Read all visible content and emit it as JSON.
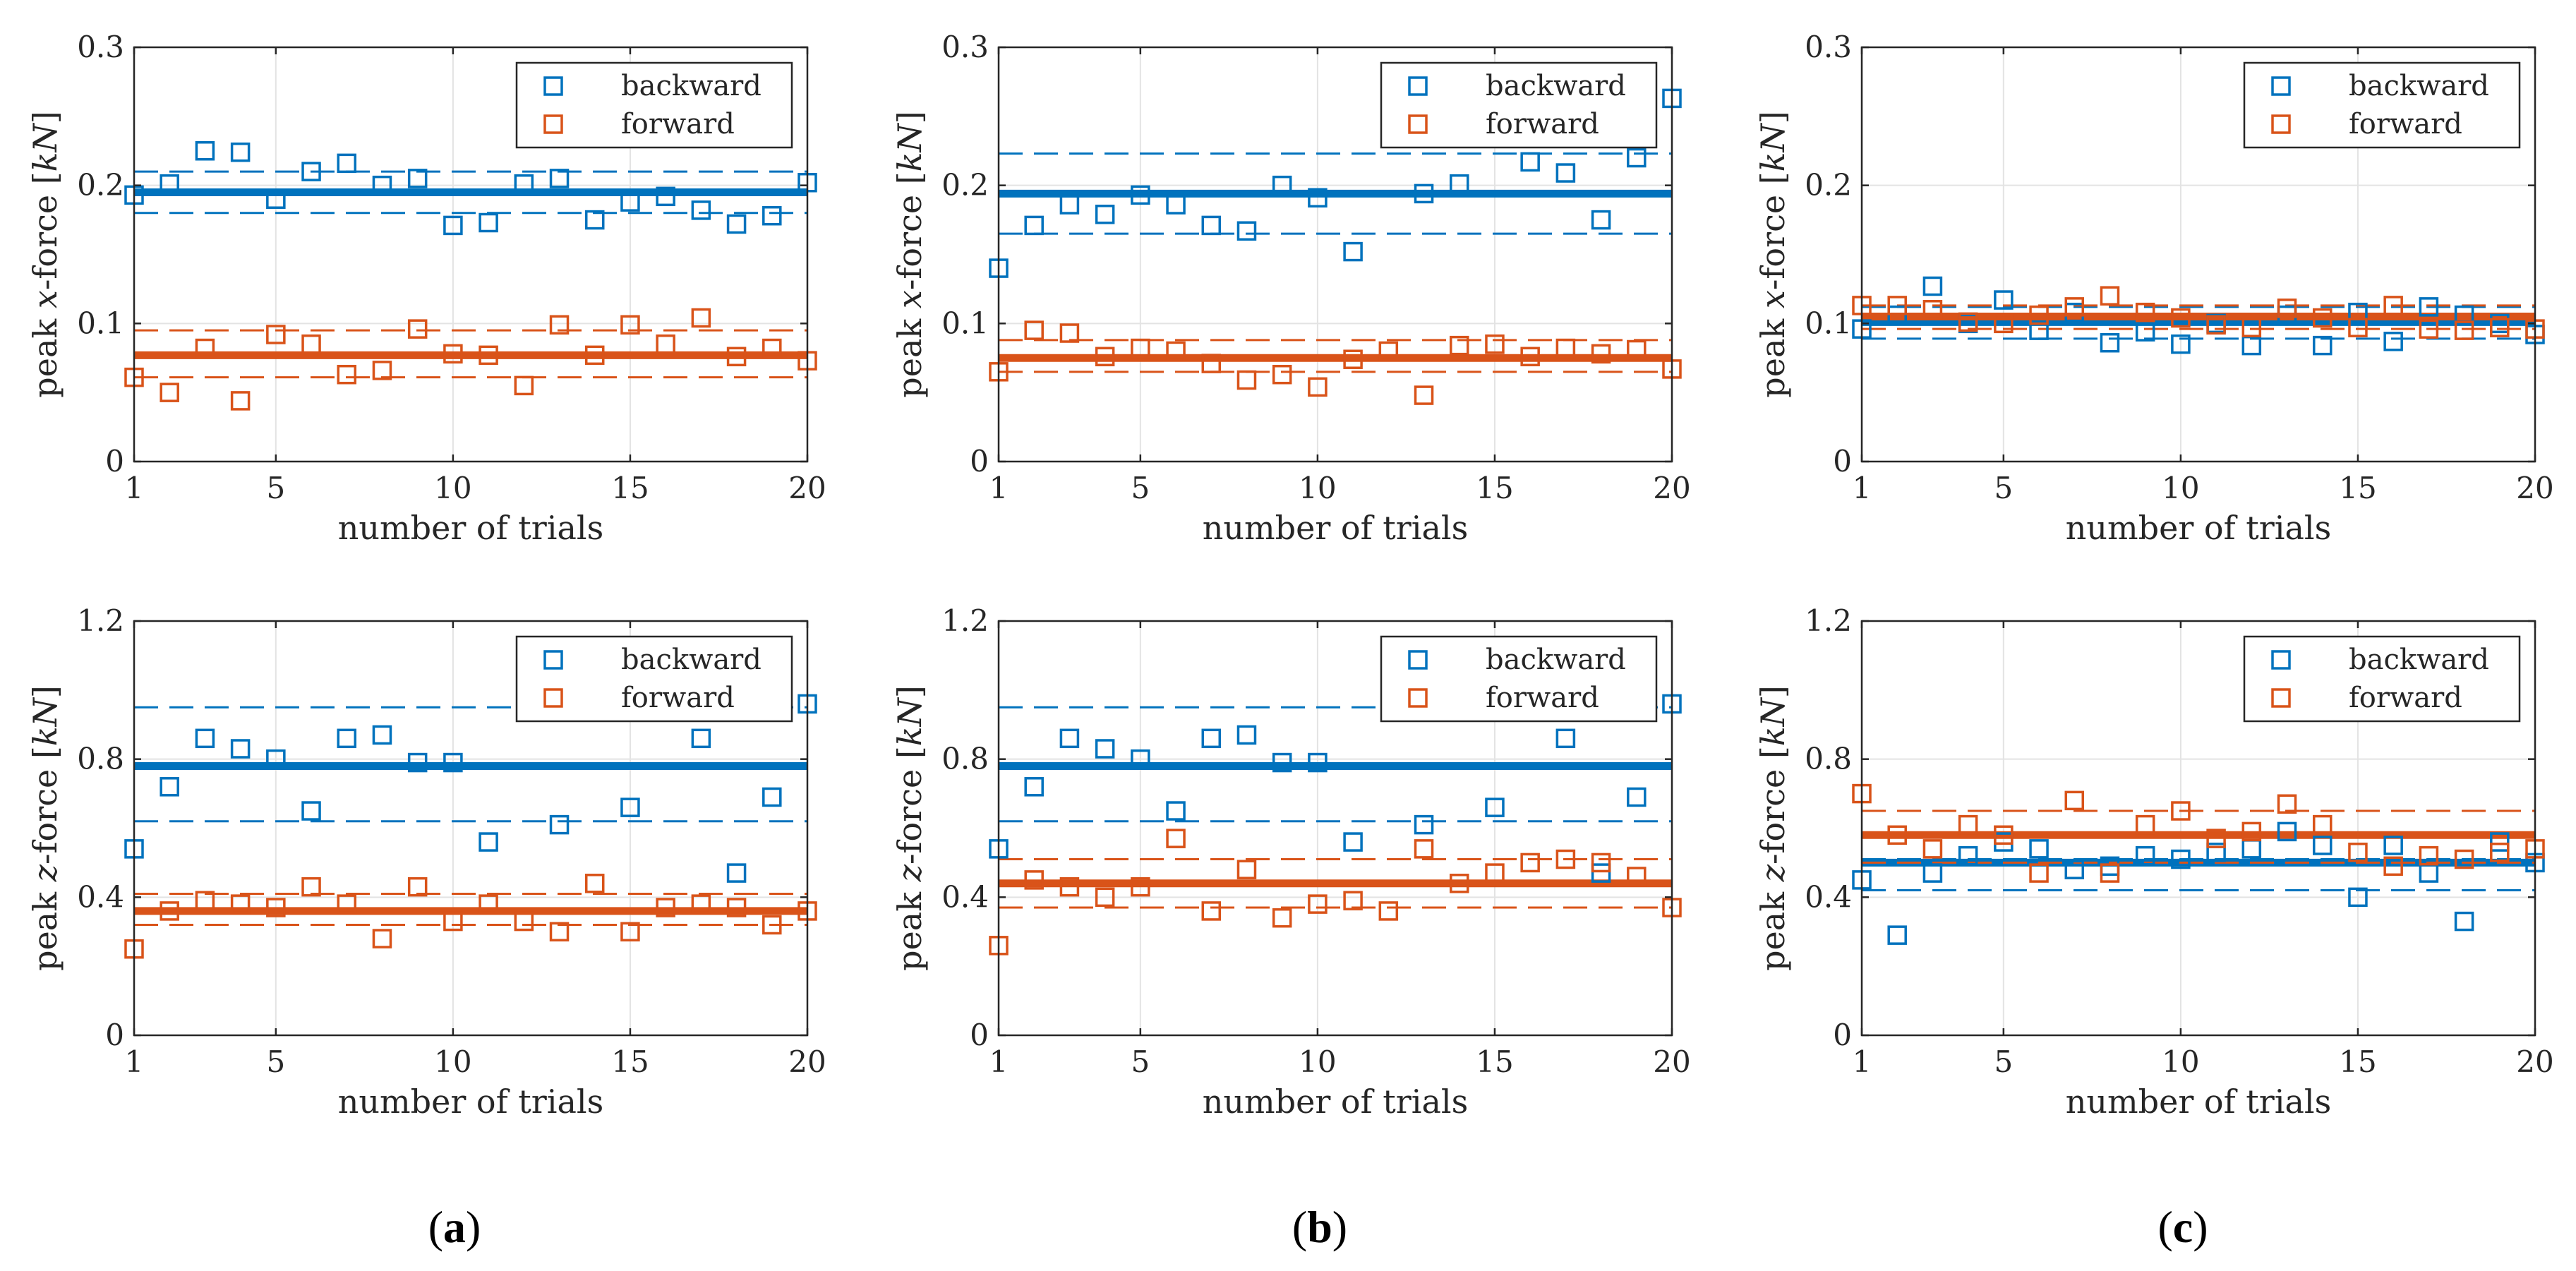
{
  "colors": {
    "backward": "#0072BD",
    "forward": "#D95319",
    "grid": "#e3e3e3",
    "axis": "#262626"
  },
  "chart_data": [
    {
      "type": "scatter",
      "panel": "(a)",
      "xlabel": "number of trials",
      "ylabel": "peak x-force [kN]",
      "ylabel_var": "x",
      "xlim": [
        1,
        20
      ],
      "ylim": [
        0,
        0.3
      ],
      "xticks": [
        1,
        5,
        10,
        15,
        20
      ],
      "yticks": [
        0,
        0.1,
        0.2,
        0.3
      ],
      "ytick_labels": [
        "0",
        "0.1",
        "0.2",
        "0.3"
      ],
      "grid": true,
      "legend": "top-right",
      "series": [
        {
          "name": "backward",
          "x": [
            1,
            2,
            3,
            4,
            5,
            6,
            7,
            8,
            9,
            10,
            11,
            12,
            13,
            14,
            15,
            16,
            17,
            18,
            19,
            20
          ],
          "y": [
            0.193,
            0.201,
            0.225,
            0.224,
            0.19,
            0.21,
            0.216,
            0.2,
            0.205,
            0.171,
            0.173,
            0.201,
            0.205,
            0.175,
            0.188,
            0.192,
            0.182,
            0.172,
            0.178,
            0.202
          ],
          "mean": 0.195,
          "band": [
            0.18,
            0.21
          ]
        },
        {
          "name": "forward",
          "x": [
            1,
            2,
            3,
            4,
            5,
            6,
            7,
            8,
            9,
            10,
            11,
            12,
            13,
            14,
            15,
            16,
            17,
            18,
            19,
            20
          ],
          "y": [
            0.061,
            0.05,
            0.082,
            0.044,
            0.092,
            0.085,
            0.063,
            0.066,
            0.096,
            0.078,
            0.077,
            0.055,
            0.099,
            0.077,
            0.099,
            0.085,
            0.104,
            0.076,
            0.082,
            0.073
          ],
          "mean": 0.077,
          "band": [
            0.061,
            0.095
          ]
        }
      ]
    },
    {
      "type": "scatter",
      "panel": "(b)",
      "xlabel": "number of trials",
      "ylabel": "peak x-force [kN]",
      "ylabel_var": "x",
      "xlim": [
        1,
        20
      ],
      "ylim": [
        0,
        0.3
      ],
      "xticks": [
        1,
        5,
        10,
        15,
        20
      ],
      "yticks": [
        0,
        0.1,
        0.2,
        0.3
      ],
      "ytick_labels": [
        "0",
        "0.1",
        "0.2",
        "0.3"
      ],
      "grid": true,
      "legend": "top-right",
      "series": [
        {
          "name": "backward",
          "x": [
            1,
            2,
            3,
            4,
            5,
            6,
            7,
            8,
            9,
            10,
            11,
            12,
            13,
            14,
            15,
            16,
            17,
            18,
            19,
            20
          ],
          "y": [
            0.14,
            0.171,
            0.186,
            0.179,
            0.193,
            0.186,
            0.171,
            0.167,
            0.2,
            0.191,
            0.152,
            null,
            0.194,
            0.201,
            null,
            0.217,
            0.209,
            0.175,
            0.22,
            0.263
          ],
          "mean": 0.194,
          "band": [
            0.165,
            0.223
          ]
        },
        {
          "name": "forward",
          "x": [
            1,
            2,
            3,
            4,
            5,
            6,
            7,
            8,
            9,
            10,
            11,
            12,
            13,
            14,
            15,
            16,
            17,
            18,
            19,
            20
          ],
          "y": [
            0.065,
            0.095,
            0.093,
            0.076,
            0.082,
            0.08,
            0.071,
            0.059,
            0.063,
            0.054,
            0.074,
            0.08,
            0.048,
            0.084,
            0.085,
            0.076,
            0.082,
            0.078,
            0.081,
            0.067
          ],
          "mean": 0.075,
          "band": [
            0.065,
            0.088
          ]
        }
      ]
    },
    {
      "type": "scatter",
      "panel": "(c)",
      "xlabel": "number of trials",
      "ylabel": "peak x-force [kN]",
      "ylabel_var": "x",
      "xlim": [
        1,
        20
      ],
      "ylim": [
        0,
        0.3
      ],
      "xticks": [
        1,
        5,
        10,
        15,
        20
      ],
      "yticks": [
        0,
        0.1,
        0.2,
        0.3
      ],
      "ytick_labels": [
        "0",
        "0.1",
        "0.2",
        "0.3"
      ],
      "grid": true,
      "legend": "top-right",
      "series": [
        {
          "name": "backward",
          "x": [
            1,
            2,
            3,
            4,
            5,
            6,
            7,
            8,
            9,
            10,
            11,
            12,
            13,
            14,
            15,
            16,
            17,
            18,
            19,
            20
          ],
          "y": [
            0.096,
            0.106,
            0.127,
            0.1,
            0.117,
            0.095,
            0.108,
            0.086,
            0.094,
            0.085,
            0.1,
            0.084,
            0.106,
            0.084,
            0.108,
            0.087,
            0.112,
            0.106,
            0.1,
            0.092
          ],
          "mean": 0.101,
          "band": [
            0.089,
            0.112
          ]
        },
        {
          "name": "forward",
          "x": [
            1,
            2,
            3,
            4,
            5,
            6,
            7,
            8,
            9,
            10,
            11,
            12,
            13,
            14,
            15,
            16,
            17,
            18,
            19,
            20
          ],
          "y": [
            0.113,
            0.113,
            0.11,
            0.101,
            0.1,
            0.106,
            0.112,
            0.12,
            0.108,
            0.104,
            0.099,
            0.097,
            0.111,
            0.104,
            0.097,
            0.113,
            0.096,
            0.095,
            0.097,
            0.096
          ],
          "mean": 0.105,
          "band": [
            0.096,
            0.113
          ]
        }
      ]
    },
    {
      "type": "scatter",
      "panel": "(a)",
      "xlabel": "number of trials",
      "ylabel": "peak z-force [kN]",
      "ylabel_var": "z",
      "xlim": [
        1,
        20
      ],
      "ylim": [
        0,
        1.2
      ],
      "xticks": [
        1,
        5,
        10,
        15,
        20
      ],
      "yticks": [
        0,
        0.4,
        0.8,
        1.2
      ],
      "ytick_labels": [
        "0",
        "0.4",
        "0.8",
        "1.2"
      ],
      "grid": true,
      "legend": "top-right",
      "series": [
        {
          "name": "backward",
          "x": [
            1,
            2,
            3,
            4,
            5,
            6,
            7,
            8,
            9,
            10,
            11,
            12,
            13,
            14,
            15,
            16,
            17,
            18,
            19,
            20
          ],
          "y": [
            0.54,
            0.72,
            0.86,
            0.83,
            0.8,
            0.65,
            0.86,
            0.87,
            0.79,
            0.79,
            0.56,
            null,
            0.61,
            null,
            0.66,
            null,
            0.86,
            0.47,
            0.69,
            0.96
          ],
          "mean": 0.78,
          "band": [
            0.62,
            0.95
          ]
        },
        {
          "name": "forward",
          "x": [
            1,
            2,
            3,
            4,
            5,
            6,
            7,
            8,
            9,
            10,
            11,
            12,
            13,
            14,
            15,
            16,
            17,
            18,
            19,
            20
          ],
          "y": [
            0.25,
            0.36,
            0.39,
            0.38,
            0.37,
            0.43,
            0.38,
            0.28,
            0.43,
            0.33,
            0.38,
            0.33,
            0.3,
            0.44,
            0.3,
            0.37,
            0.38,
            0.37,
            0.32,
            0.36
          ],
          "mean": 0.36,
          "band": [
            0.32,
            0.41
          ]
        }
      ]
    },
    {
      "type": "scatter",
      "panel": "(b)",
      "xlabel": "number of trials",
      "ylabel": "peak z-force [kN]",
      "ylabel_var": "z",
      "xlim": [
        1,
        20
      ],
      "ylim": [
        0,
        1.2
      ],
      "xticks": [
        1,
        5,
        10,
        15,
        20
      ],
      "yticks": [
        0,
        0.4,
        0.8,
        1.2
      ],
      "ytick_labels": [
        "0",
        "0.4",
        "0.8",
        "1.2"
      ],
      "grid": true,
      "legend": "top-right",
      "series": [
        {
          "name": "backward",
          "x": [
            1,
            2,
            3,
            4,
            5,
            6,
            7,
            8,
            9,
            10,
            11,
            12,
            13,
            14,
            15,
            16,
            17,
            18,
            19,
            20
          ],
          "y": [
            0.54,
            0.72,
            0.86,
            0.83,
            0.8,
            0.65,
            0.86,
            0.87,
            0.79,
            0.79,
            0.56,
            null,
            0.61,
            null,
            0.66,
            null,
            0.86,
            0.47,
            0.69,
            0.96
          ],
          "mean": 0.78,
          "band": [
            0.62,
            0.95
          ]
        },
        {
          "name": "forward",
          "x": [
            1,
            2,
            3,
            4,
            5,
            6,
            7,
            8,
            9,
            10,
            11,
            12,
            13,
            14,
            15,
            16,
            17,
            18,
            19,
            20
          ],
          "y": [
            0.26,
            0.45,
            0.43,
            0.4,
            0.43,
            0.57,
            0.36,
            0.48,
            0.34,
            0.38,
            0.39,
            0.36,
            0.54,
            0.44,
            0.47,
            0.5,
            0.51,
            0.5,
            0.46,
            0.37
          ],
          "mean": 0.44,
          "band": [
            0.37,
            0.51
          ]
        }
      ]
    },
    {
      "type": "scatter",
      "panel": "(c)",
      "xlabel": "number of trials",
      "ylabel": "peak z-force [kN]",
      "ylabel_var": "z",
      "xlim": [
        1,
        20
      ],
      "ylim": [
        0,
        1.2
      ],
      "xticks": [
        1,
        5,
        10,
        15,
        20
      ],
      "yticks": [
        0,
        0.4,
        0.8,
        1.2
      ],
      "ytick_labels": [
        "0",
        "0.4",
        "0.8",
        "1.2"
      ],
      "grid": true,
      "legend": "top-right",
      "series": [
        {
          "name": "backward",
          "x": [
            1,
            2,
            3,
            4,
            5,
            6,
            7,
            8,
            9,
            10,
            11,
            12,
            13,
            14,
            15,
            16,
            17,
            18,
            19,
            20
          ],
          "y": [
            0.45,
            0.29,
            0.47,
            0.52,
            0.56,
            0.54,
            0.48,
            0.49,
            0.52,
            0.51,
            0.53,
            0.54,
            0.59,
            0.55,
            0.4,
            0.55,
            0.47,
            0.33,
            0.56,
            0.5
          ],
          "mean": 0.5,
          "band": [
            0.42,
            0.51
          ]
        },
        {
          "name": "forward",
          "x": [
            1,
            2,
            3,
            4,
            5,
            6,
            7,
            8,
            9,
            10,
            11,
            12,
            13,
            14,
            15,
            16,
            17,
            18,
            19,
            20
          ],
          "y": [
            0.7,
            0.58,
            0.54,
            0.61,
            0.58,
            0.47,
            0.68,
            0.47,
            0.61,
            0.65,
            0.57,
            0.59,
            0.67,
            0.61,
            0.53,
            0.49,
            0.52,
            0.51,
            0.53,
            0.54
          ],
          "mean": 0.58,
          "band": [
            0.5,
            0.65
          ]
        }
      ]
    }
  ],
  "captions": [
    "(a)",
    "(b)",
    "(c)"
  ],
  "ylabel_parts": {
    "prefix": "peak ",
    "suffix": "-force [kN]"
  }
}
